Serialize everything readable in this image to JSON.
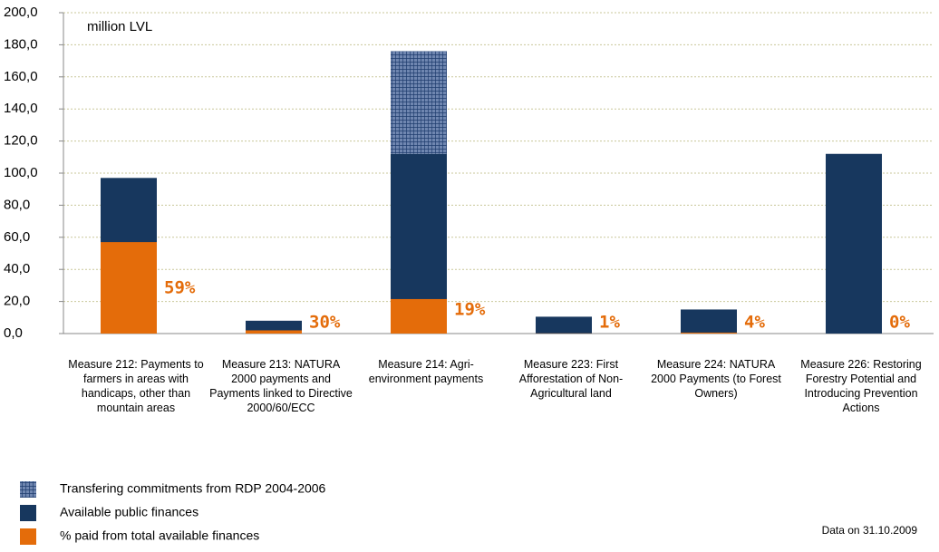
{
  "chart_data": {
    "type": "bar",
    "annotation": "million LVL",
    "note": "Data on 31.10.2009",
    "categories": [
      "Measure 212: Payments to farmers in areas with handicaps, other than mountain areas",
      "Measure 213: NATURA 2000 payments and Payments linked to Directive 2000/60/ECC",
      "Measure 214: Agri-environment payments",
      "Measure 223: First Afforestation of Non-Agricultural land",
      "Measure 224: NATURA 2000 Payments (to Forest Owners)",
      "Measure 226: Restoring Forestry Potential and Introducing Prevention Actions"
    ],
    "series": [
      {
        "name": "Transfering commitments from RDP 2004-2006",
        "color": "#3a5a94",
        "pattern": "hatch",
        "stacked_on": 1,
        "values": [
          null,
          null,
          64,
          null,
          null,
          null
        ]
      },
      {
        "name": "Available public finances",
        "color": "#17375e",
        "values": [
          97,
          8,
          112,
          10.5,
          15,
          112
        ]
      },
      {
        "name": "% paid from total available finances",
        "color": "#e46c0a",
        "values": [
          57,
          2,
          21.5,
          0.1,
          0.6,
          0
        ],
        "value_labels": [
          "59%",
          "30%",
          "19%",
          "1%",
          "4%",
          "0%"
        ]
      }
    ],
    "ylim": [
      0,
      200
    ],
    "yticks": [
      {
        "value": 0,
        "label": "0,0"
      },
      {
        "value": 20,
        "label": "20,0"
      },
      {
        "value": 40,
        "label": "40,0"
      },
      {
        "value": 60,
        "label": "60,0"
      },
      {
        "value": 80,
        "label": "80,0"
      },
      {
        "value": 100,
        "label": "100,0"
      },
      {
        "value": 120,
        "label": "120,0"
      },
      {
        "value": 140,
        "label": "140,0"
      },
      {
        "value": 160,
        "label": "160,0"
      },
      {
        "value": 180,
        "label": "180,0"
      },
      {
        "value": 200,
        "label": "200,0"
      }
    ],
    "grid": true
  }
}
